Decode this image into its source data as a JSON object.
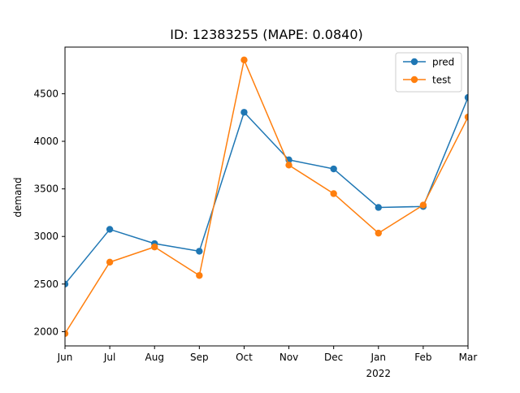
{
  "chart_data": {
    "type": "line",
    "title": "ID: 12383255 (MAPE: 0.0840)",
    "xlabel": "",
    "ylabel": "demand",
    "categories": [
      "Jun",
      "Jul",
      "Aug",
      "Sep",
      "Oct",
      "Nov",
      "Dec",
      "Jan",
      "Feb",
      "Mar"
    ],
    "year_label": "2022",
    "ylim": [
      1850,
      4990
    ],
    "yticks": [
      2000,
      2500,
      3000,
      3500,
      4000,
      4500
    ],
    "grid": false,
    "legend_position": "top-right",
    "series": [
      {
        "name": "pred",
        "color": "#1f77b4",
        "marker": "circle",
        "values": [
          2500,
          3075,
          2925,
          2845,
          4305,
          3805,
          3710,
          3305,
          3315,
          4460
        ]
      },
      {
        "name": "test",
        "color": "#ff7f0e",
        "marker": "circle",
        "values": [
          1980,
          2730,
          2890,
          2590,
          4855,
          3750,
          3450,
          3035,
          3330,
          4255
        ]
      }
    ]
  }
}
